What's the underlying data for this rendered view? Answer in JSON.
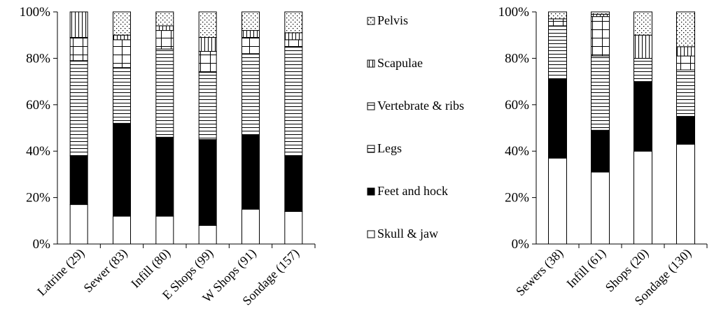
{
  "legend": [
    {
      "key": "pelvis",
      "label": "Pelvis",
      "pattern": "dots"
    },
    {
      "key": "scapulae",
      "label": "Scapulae",
      "pattern": "vlines"
    },
    {
      "key": "vertebrae",
      "label": "Vertebrate & ribs",
      "pattern": "grid"
    },
    {
      "key": "legs",
      "label": "Legs",
      "pattern": "hlines"
    },
    {
      "key": "feet",
      "label": "Feet and hock",
      "pattern": "solid"
    },
    {
      "key": "skull",
      "label": "Skull & jaw",
      "pattern": "white"
    }
  ],
  "chart_data": [
    {
      "type": "bar",
      "stacked": "percent",
      "ylim": [
        0,
        100
      ],
      "yticks": [
        "0%",
        "20%",
        "40%",
        "60%",
        "80%",
        "100%"
      ],
      "categories": [
        "Latrine (29)",
        "Sewer (83)",
        "Infill (80)",
        "E Shops (99)",
        "W Shops (91)",
        "Sondage (157)"
      ],
      "series": [
        {
          "name": "Skull & jaw",
          "values": [
            17,
            12,
            12,
            8,
            15,
            14
          ]
        },
        {
          "name": "Feet and hock",
          "values": [
            21,
            40,
            34,
            37,
            32,
            24
          ]
        },
        {
          "name": "Legs",
          "values": [
            41,
            24,
            38,
            29,
            35,
            47
          ]
        },
        {
          "name": "Vertebrate & ribs",
          "values": [
            10,
            12,
            8,
            9,
            7,
            3
          ]
        },
        {
          "name": "Scapulae",
          "values": [
            11,
            2,
            2,
            6,
            3,
            3
          ]
        },
        {
          "name": "Pelvis",
          "values": [
            0,
            10,
            6,
            11,
            8,
            9
          ]
        }
      ]
    },
    {
      "type": "bar",
      "stacked": "percent",
      "ylim": [
        0,
        100
      ],
      "yticks": [
        "0%",
        "20%",
        "40%",
        "60%",
        "80%",
        "100%"
      ],
      "categories": [
        "Sewers (38)",
        "Infill (61)",
        "Shops (20)",
        "Sondage (130)"
      ],
      "series": [
        {
          "name": "Skull & jaw",
          "values": [
            37,
            31,
            40,
            43
          ]
        },
        {
          "name": "Feet and hock",
          "values": [
            34,
            18,
            30,
            12
          ]
        },
        {
          "name": "Legs",
          "values": [
            23,
            32,
            10,
            20
          ]
        },
        {
          "name": "Vertebrate & ribs",
          "values": [
            3,
            17,
            0,
            6
          ]
        },
        {
          "name": "Scapulae",
          "values": [
            0,
            1,
            10,
            4
          ]
        },
        {
          "name": "Pelvis",
          "values": [
            3,
            1,
            10,
            15
          ]
        }
      ]
    }
  ]
}
